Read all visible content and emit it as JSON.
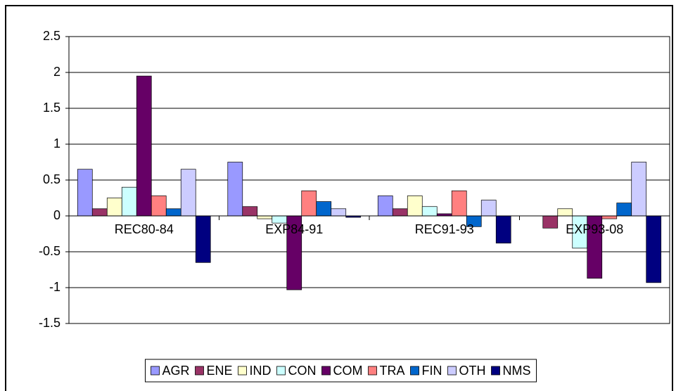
{
  "chart_data": {
    "type": "bar",
    "categories": [
      "REC80-84",
      "EXP84-91",
      "REC91-93",
      "EXP93-08"
    ],
    "series": [
      {
        "name": "AGR",
        "color": "#9999ff",
        "values": [
          0.65,
          0.75,
          0.28,
          0
        ]
      },
      {
        "name": "ENE",
        "color": "#993366",
        "values": [
          0.1,
          0.13,
          0.1,
          -0.17
        ]
      },
      {
        "name": "IND",
        "color": "#ffffcc",
        "values": [
          0.25,
          -0.04,
          0.28,
          0.1
        ]
      },
      {
        "name": "CON",
        "color": "#ccffff",
        "values": [
          0.4,
          -0.1,
          0.13,
          -0.45
        ]
      },
      {
        "name": "COM",
        "color": "#660066",
        "values": [
          1.95,
          -1.03,
          0.03,
          -0.87
        ]
      },
      {
        "name": "TRA",
        "color": "#ff8080",
        "values": [
          0.28,
          0.35,
          0.35,
          -0.04
        ]
      },
      {
        "name": "FIN",
        "color": "#0066cc",
        "values": [
          0.1,
          0.2,
          -0.15,
          0.18
        ]
      },
      {
        "name": "OTH",
        "color": "#ccccff",
        "values": [
          0.65,
          0.1,
          0.22,
          0.75
        ]
      },
      {
        "name": "NMS",
        "color": "#000080",
        "values": [
          -0.65,
          -0.02,
          -0.38,
          -0.93
        ]
      }
    ],
    "ylim": [
      -1.5,
      2.5
    ],
    "yticks": [
      -1.5,
      -1,
      -0.5,
      0,
      0.5,
      1,
      1.5,
      2,
      2.5
    ],
    "grid": true,
    "legend": "bottom"
  }
}
